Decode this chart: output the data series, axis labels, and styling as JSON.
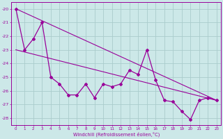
{
  "xlabel": "Windchill (Refroidissement éolien,°C)",
  "line1_x": [
    0,
    1,
    2,
    3,
    4,
    5,
    6,
    7,
    8,
    9,
    10,
    11,
    12,
    13,
    14,
    15,
    16,
    17,
    18,
    19,
    20,
    21,
    22,
    23
  ],
  "line1_y": [
    -20.0,
    -23.0,
    -22.2,
    -21.0,
    -25.0,
    -25.5,
    -26.3,
    -26.3,
    -25.5,
    -26.5,
    -25.5,
    -25.7,
    -25.5,
    -24.5,
    -24.8,
    -23.0,
    -25.2,
    -26.7,
    -26.8,
    -27.5,
    -28.1,
    -26.7,
    -26.5,
    -26.7
  ],
  "trend_x": [
    0,
    23
  ],
  "trend_y": [
    -20.0,
    -26.7
  ],
  "trend2_x": [
    0,
    23
  ],
  "trend2_y": [
    -23.0,
    -26.7
  ],
  "color": "#990099",
  "bg_color": "#cce8e8",
  "grid_color": "#aacccc",
  "ylim": [
    -28.5,
    -19.5
  ],
  "xlim": [
    -0.5,
    23.5
  ],
  "yticks": [
    -20,
    -21,
    -22,
    -23,
    -24,
    -25,
    -26,
    -27,
    -28
  ],
  "xticks": [
    0,
    1,
    2,
    3,
    4,
    5,
    6,
    7,
    8,
    9,
    10,
    11,
    12,
    13,
    14,
    15,
    16,
    17,
    18,
    19,
    20,
    21,
    22,
    23
  ],
  "tick_fontsize": 4.0,
  "xlabel_fontsize": 4.8
}
